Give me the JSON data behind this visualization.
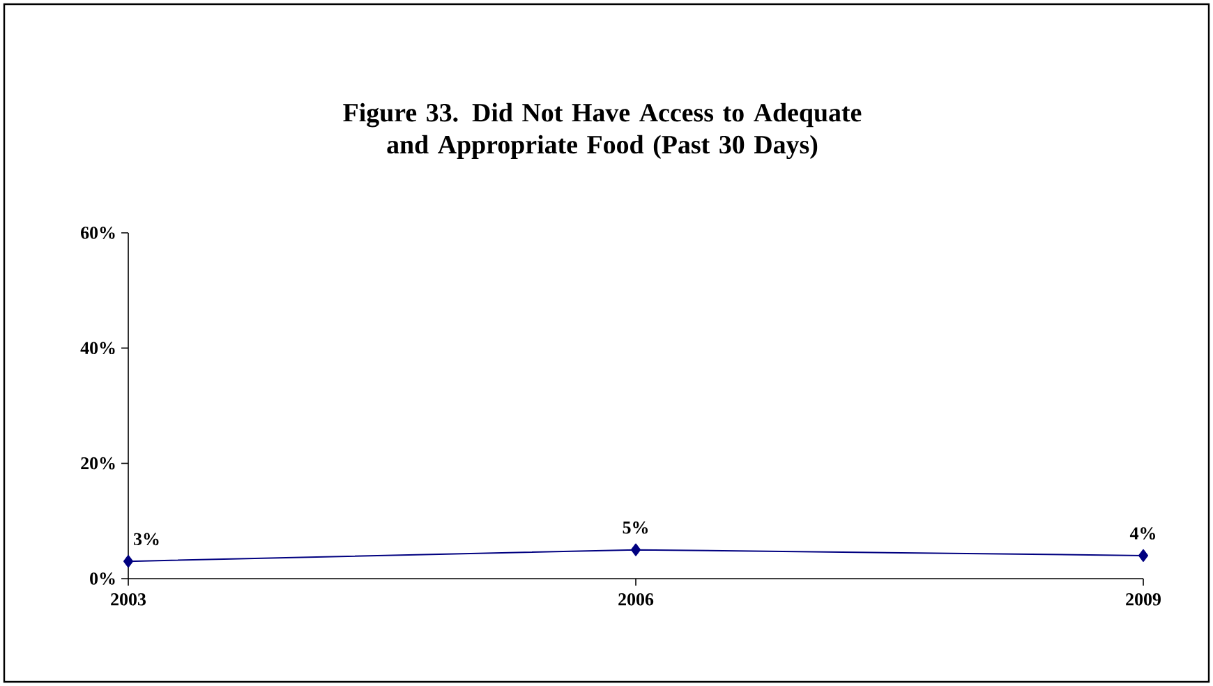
{
  "chart_data": {
    "type": "line",
    "title": "Figure 33. Did Not Have Access to Adequate and Appropriate Food (Past 30 Days)",
    "categories": [
      "2003",
      "2006",
      "2009"
    ],
    "series": [
      {
        "color": "#000080",
        "values": [
          3,
          5,
          4
        ],
        "value_labels": [
          "3%",
          "5%",
          "4%"
        ]
      }
    ],
    "ylim": [
      0,
      60
    ],
    "yticks": [
      {
        "value": 0,
        "label": "0%"
      },
      {
        "value": 20,
        "label": "20%"
      },
      {
        "value": 40,
        "label": "40%"
      },
      {
        "value": 60,
        "label": "60%"
      }
    ],
    "grid": false,
    "legend": false,
    "marker": "diamond",
    "line_style": "solid"
  }
}
